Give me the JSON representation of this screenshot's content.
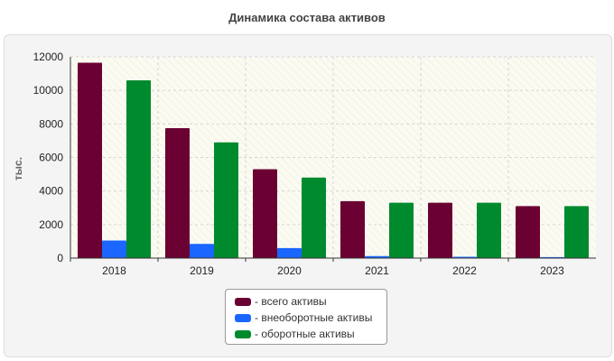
{
  "chart_data": {
    "type": "bar",
    "title": "Динамика состава активов",
    "ylabel": "тыс.",
    "xlabel": "",
    "categories": [
      "2018",
      "2019",
      "2020",
      "2021",
      "2022",
      "2023"
    ],
    "ylim": [
      0,
      12000
    ],
    "yticks": [
      0,
      2000,
      4000,
      6000,
      8000,
      10000,
      12000
    ],
    "grid": true,
    "legend_position": "bottom-center",
    "series": [
      {
        "name": "- всего активы",
        "color": "#6b0032",
        "values": [
          11650,
          7750,
          5300,
          3400,
          3300,
          3100
        ]
      },
      {
        "name": "- внеоборотные активы",
        "color": "#1a66ff",
        "values": [
          1050,
          850,
          600,
          120,
          80,
          60
        ]
      },
      {
        "name": "- оборотные активы",
        "color": "#008a2e",
        "values": [
          10600,
          6900,
          4800,
          3300,
          3300,
          3100
        ]
      }
    ]
  }
}
